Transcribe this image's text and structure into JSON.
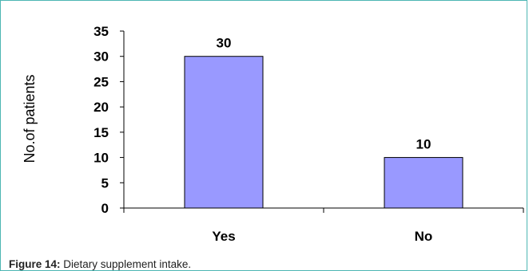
{
  "chart_data": {
    "type": "bar",
    "categories": [
      "Yes",
      "No"
    ],
    "values": [
      30,
      10
    ],
    "data_labels": [
      "30",
      "10"
    ],
    "ylabel": "No.of patients",
    "xlabel": "",
    "ylim": [
      0,
      35
    ],
    "yticks": [
      0,
      5,
      10,
      15,
      20,
      25,
      30,
      35
    ],
    "grid": false,
    "bar_color": "#9999ff",
    "bar_edge_color": "#000000"
  },
  "caption": {
    "label": "Figure 14:",
    "text": "Dietary supplement intake."
  },
  "colors": {
    "frame_border": "#4db6b3"
  }
}
